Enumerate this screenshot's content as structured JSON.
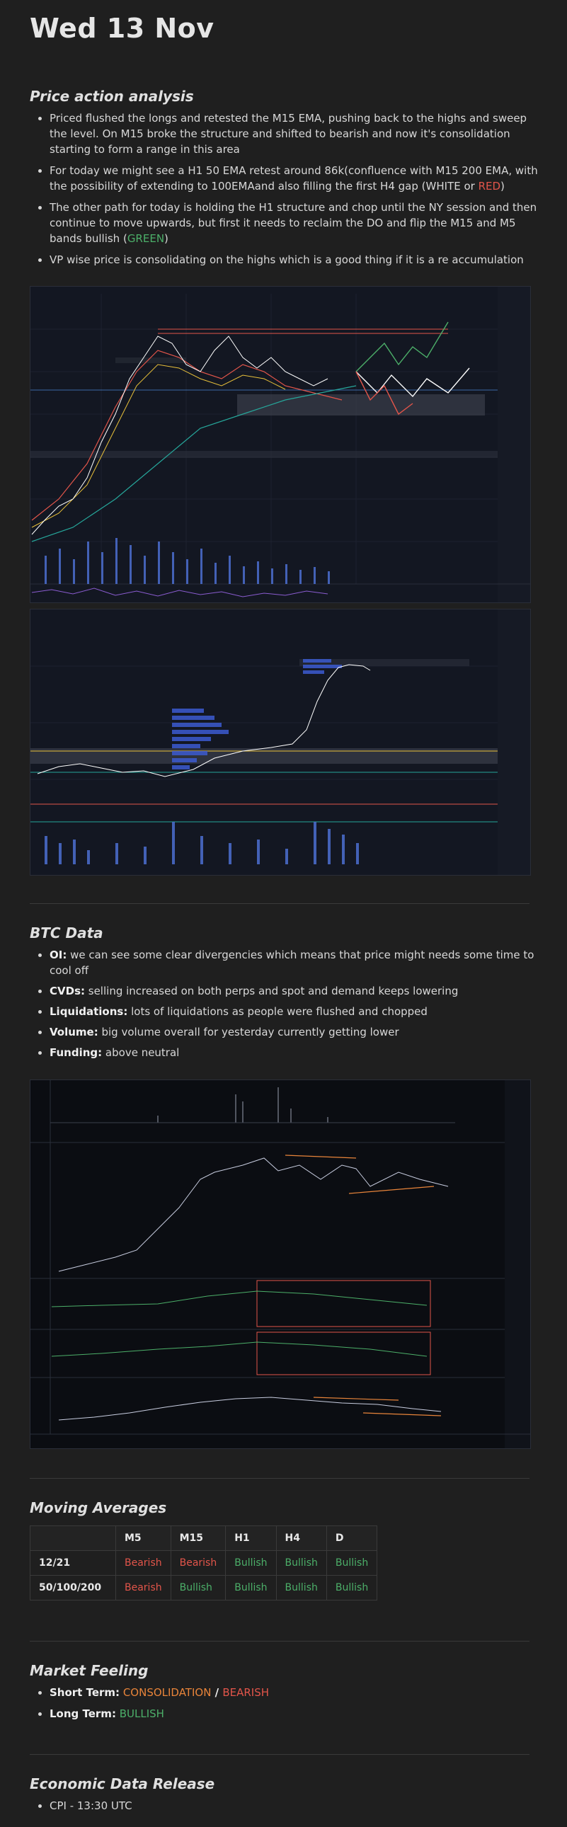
{
  "title": "Wed 13 Nov",
  "price_action": {
    "heading": "Price action analysis",
    "bullets": [
      "Priced flushed the longs and retested the M15 EMA, pushing back to the highs and sweep the level. On M15 broke the structure and shifted to bearish and now it's consolidation starting to form a range in this area",
      "For today we might see a H1 50 EMA retest around 86k(confluence with M15 200 EMA, with the possibility of extending to 100EMAand also filling the first H4 gap (",
      "The other path for today is holding the H1 structure and chop until the NY session and then continue to move upwards, but first it needs to reclaim the DO and flip the M15 and M5 bands bullish (",
      "VP wise price is consolidating on the highs which is a good thing if it is a re accumulation"
    ],
    "b2_white": "WHITE",
    "b2_or": " or ",
    "b2_red": "RED",
    "b2_end": ")",
    "b3_green": "GREEN",
    "b3_end": ")"
  },
  "btc_data": {
    "heading": "BTC Data",
    "items": [
      {
        "label": "OI:",
        "text": " we can see some clear divergencies which means that price might needs some time to cool off"
      },
      {
        "label": "CVDs:",
        "text": " selling increased on both perps and spot and demand keeps lowering"
      },
      {
        "label": "Liquidations:",
        "text": " lots of liquidations as people were flushed and chopped"
      },
      {
        "label": "Volume:",
        "text": " big volume overall for yesterday currently getting lower"
      },
      {
        "label": "Funding:",
        "text": " above neutral"
      }
    ]
  },
  "moving_averages": {
    "heading": "Moving Averages",
    "columns": [
      "",
      "M5",
      "M15",
      "H1",
      "H4",
      "D"
    ],
    "rows": [
      {
        "label": "12/21",
        "values": [
          "Bearish",
          "Bearish",
          "Bullish",
          "Bullish",
          "Bullish"
        ]
      },
      {
        "label": "50/100/200",
        "values": [
          "Bearish",
          "Bullish",
          "Bullish",
          "Bullish",
          "Bullish"
        ]
      }
    ]
  },
  "market_feeling": {
    "heading": "Market Feeling",
    "short_label": "Short Term:",
    "short_a": "CONSOLIDATION",
    "short_sep": " / ",
    "short_b": "BEARISH",
    "long_label": "Long Term:",
    "long_value": "BULLISH"
  },
  "economic": {
    "heading": "Economic Data Release",
    "items": [
      "CPI - 13:30 UTC"
    ]
  },
  "colors": {
    "bearish": "#e2554a",
    "bullish": "#4caf69",
    "orange": "#e8843a",
    "chart_bg": "#131722"
  }
}
